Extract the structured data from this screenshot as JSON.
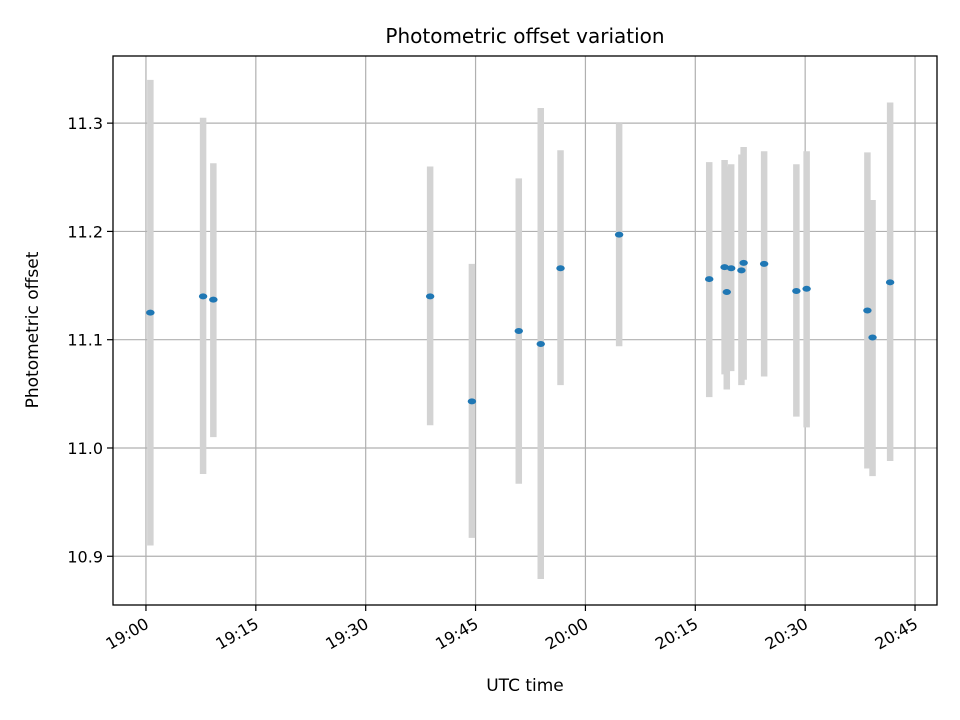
{
  "chart_data": {
    "type": "scatter",
    "title": "Photometric offset variation",
    "xlabel": "UTC time",
    "ylabel": "Photometric offset",
    "x_unit": "minutes after 19:00 UTC",
    "xlim": [
      -4.5,
      108
    ],
    "ylim": [
      10.855,
      11.362
    ],
    "x_ticks": [
      {
        "value": 0,
        "label": "19:00"
      },
      {
        "value": 15,
        "label": "19:15"
      },
      {
        "value": 30,
        "label": "19:30"
      },
      {
        "value": 45,
        "label": "19:45"
      },
      {
        "value": 60,
        "label": "20:00"
      },
      {
        "value": 75,
        "label": "20:15"
      },
      {
        "value": 90,
        "label": "20:30"
      },
      {
        "value": 105,
        "label": "20:45"
      }
    ],
    "y_ticks": [
      {
        "value": 10.9,
        "label": "10.9"
      },
      {
        "value": 11.0,
        "label": "11.0"
      },
      {
        "value": 11.1,
        "label": "11.1"
      },
      {
        "value": 11.2,
        "label": "11.2"
      },
      {
        "value": 11.3,
        "label": "11.3"
      }
    ],
    "grid": true,
    "point_color": "#1f77b4",
    "errorbar_color": "#d3d3d3",
    "points": [
      {
        "x": 0.6,
        "y": 11.125,
        "ylow": 10.91,
        "yhigh": 11.34
      },
      {
        "x": 7.8,
        "y": 11.14,
        "ylow": 10.976,
        "yhigh": 11.305
      },
      {
        "x": 9.2,
        "y": 11.137,
        "ylow": 11.01,
        "yhigh": 11.263
      },
      {
        "x": 38.8,
        "y": 11.14,
        "ylow": 11.021,
        "yhigh": 11.26
      },
      {
        "x": 44.5,
        "y": 11.043,
        "ylow": 10.917,
        "yhigh": 11.17
      },
      {
        "x": 50.9,
        "y": 11.108,
        "ylow": 10.967,
        "yhigh": 11.249
      },
      {
        "x": 53.9,
        "y": 11.096,
        "ylow": 10.879,
        "yhigh": 11.314
      },
      {
        "x": 56.6,
        "y": 11.166,
        "ylow": 11.058,
        "yhigh": 11.275
      },
      {
        "x": 64.6,
        "y": 11.197,
        "ylow": 11.094,
        "yhigh": 11.3
      },
      {
        "x": 79.0,
        "y": 11.167,
        "ylow": 11.068,
        "yhigh": 11.266
      },
      {
        "x": 79.3,
        "y": 11.144,
        "ylow": 11.054,
        "yhigh": 11.26
      },
      {
        "x": 79.9,
        "y": 11.166,
        "ylow": 11.071,
        "yhigh": 11.262
      },
      {
        "x": 81.6,
        "y": 11.171,
        "ylow": 11.063,
        "yhigh": 11.278
      },
      {
        "x": 84.4,
        "y": 11.17,
        "ylow": 11.066,
        "yhigh": 11.274
      },
      {
        "x": 76.9,
        "y": 11.156,
        "ylow": 11.047,
        "yhigh": 11.264
      },
      {
        "x": 81.3,
        "y": 11.164,
        "ylow": 11.058,
        "yhigh": 11.271
      },
      {
        "x": 88.8,
        "y": 11.145,
        "ylow": 11.029,
        "yhigh": 11.262
      },
      {
        "x": 90.2,
        "y": 11.147,
        "ylow": 11.019,
        "yhigh": 11.274
      },
      {
        "x": 98.5,
        "y": 11.127,
        "ylow": 10.981,
        "yhigh": 11.273
      },
      {
        "x": 99.2,
        "y": 11.102,
        "ylow": 10.974,
        "yhigh": 11.229
      },
      {
        "x": 101.6,
        "y": 11.153,
        "ylow": 10.988,
        "yhigh": 11.319
      }
    ]
  }
}
